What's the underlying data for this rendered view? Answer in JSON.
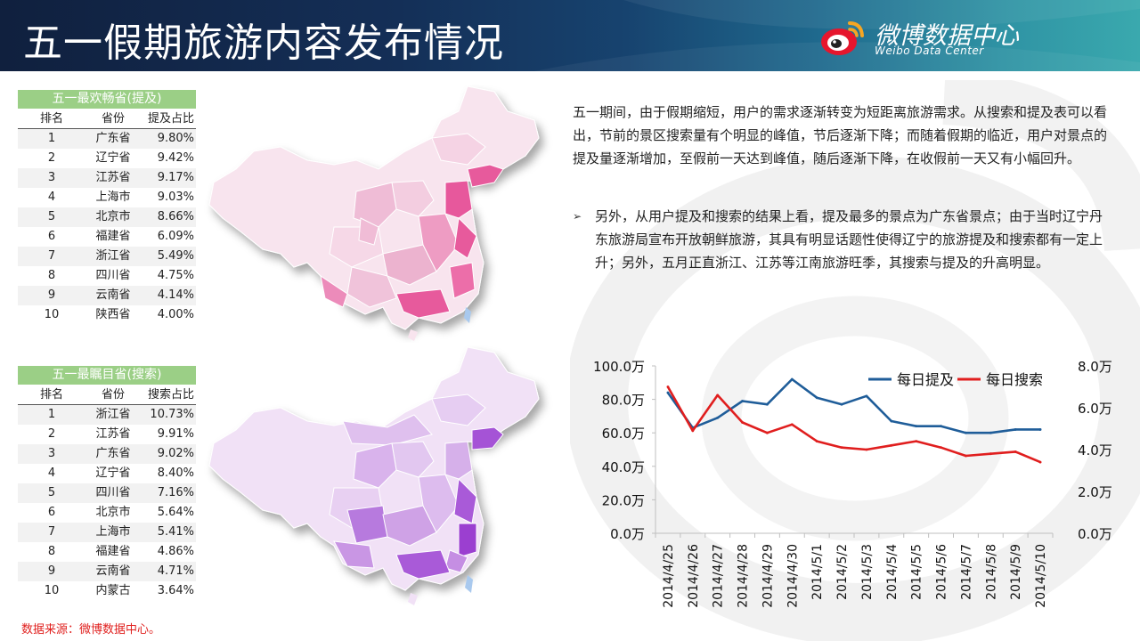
{
  "header": {
    "title": "五一假期旅游内容发布情况",
    "brand_cn": "微博数据中心",
    "brand_en": "Weibo Data Center"
  },
  "table_top": {
    "title": "五一最欢畅省(提及)",
    "headers": [
      "排名",
      "省份",
      "提及占比"
    ],
    "rows": [
      [
        "1",
        "广东省",
        "9.80%"
      ],
      [
        "2",
        "辽宁省",
        "9.42%"
      ],
      [
        "3",
        "江苏省",
        "9.17%"
      ],
      [
        "4",
        "上海市",
        "9.03%"
      ],
      [
        "5",
        "北京市",
        "8.66%"
      ],
      [
        "6",
        "福建省",
        "6.09%"
      ],
      [
        "7",
        "浙江省",
        "5.49%"
      ],
      [
        "8",
        "四川省",
        "4.75%"
      ],
      [
        "9",
        "云南省",
        "4.14%"
      ],
      [
        "10",
        "陕西省",
        "4.00%"
      ]
    ]
  },
  "table_bottom": {
    "title": "五一最瞩目省(搜索)",
    "headers": [
      "排名",
      "省份",
      "搜索占比"
    ],
    "rows": [
      [
        "1",
        "浙江省",
        "10.73%"
      ],
      [
        "2",
        "江苏省",
        "9.91%"
      ],
      [
        "3",
        "广东省",
        "9.02%"
      ],
      [
        "4",
        "辽宁省",
        "8.40%"
      ],
      [
        "5",
        "四川省",
        "7.16%"
      ],
      [
        "6",
        "北京市",
        "5.64%"
      ],
      [
        "7",
        "上海市",
        "5.41%"
      ],
      [
        "8",
        "福建省",
        "4.86%"
      ],
      [
        "9",
        "云南省",
        "4.71%"
      ],
      [
        "10",
        "内蒙古",
        "3.64%"
      ]
    ]
  },
  "text": {
    "para1": "五一期间，由于假期缩短，用户的需求逐渐转变为短距离旅游需求。从搜索和提及表可以看出，节前的景区搜索量有个明显的峰值，节后逐渐下降；而随着假期的临近，用户对景点的提及量逐渐增加，至假前一天达到峰值，随后逐渐下降，在收假前一天又有小幅回升。",
    "bullet": "➢",
    "para2": "另外，从用户提及和搜索的结果上看，提及最多的景点为广东省景点；由于当时辽宁丹东旅游局宣布开放朝鲜旅游，其具有明显话题性使得辽宁的旅游提及和搜索都有一定上升；另外，五月正直浙江、江苏等江南旅游旺季，其搜索与提及的升高明显。"
  },
  "footnote": "数据来源：微博数据中心。",
  "colors": {
    "mention_line": "#1f5d99",
    "search_line": "#e01e1e",
    "map_top_accent": "#e75a9c",
    "map_bottom_accent": "#9b3fd0"
  },
  "chart_data": {
    "type": "line",
    "x": [
      "2014/4/25",
      "2014/4/26",
      "2014/4/27",
      "2014/4/28",
      "2014/4/29",
      "2014/4/30",
      "2014/5/1",
      "2014/5/2",
      "2014/5/3",
      "2014/5/4",
      "2014/5/5",
      "2014/5/6",
      "2014/5/7",
      "2014/5/8",
      "2014/5/9",
      "2014/5/10"
    ],
    "series": [
      {
        "name": "每日提及",
        "axis": "left",
        "values": [
          84,
          63,
          69,
          79,
          77,
          92,
          81,
          77,
          82,
          67,
          64,
          64,
          60,
          60,
          62,
          62
        ]
      },
      {
        "name": "每日搜索",
        "axis": "right",
        "values": [
          7.0,
          4.9,
          6.6,
          5.3,
          4.8,
          5.2,
          4.4,
          4.1,
          4.0,
          4.2,
          4.4,
          4.1,
          3.7,
          3.8,
          3.9,
          3.4
        ]
      }
    ],
    "y_left": {
      "min": 0,
      "max": 100,
      "ticks": [
        "0.0万",
        "20.0万",
        "40.0万",
        "60.0万",
        "80.0万",
        "100.0万"
      ]
    },
    "y_right": {
      "min": 0,
      "max": 8,
      "ticks": [
        "0.0万",
        "2.0万",
        "4.0万",
        "6.0万",
        "8.0万"
      ]
    },
    "legend_position": "top-right",
    "grid": false
  }
}
